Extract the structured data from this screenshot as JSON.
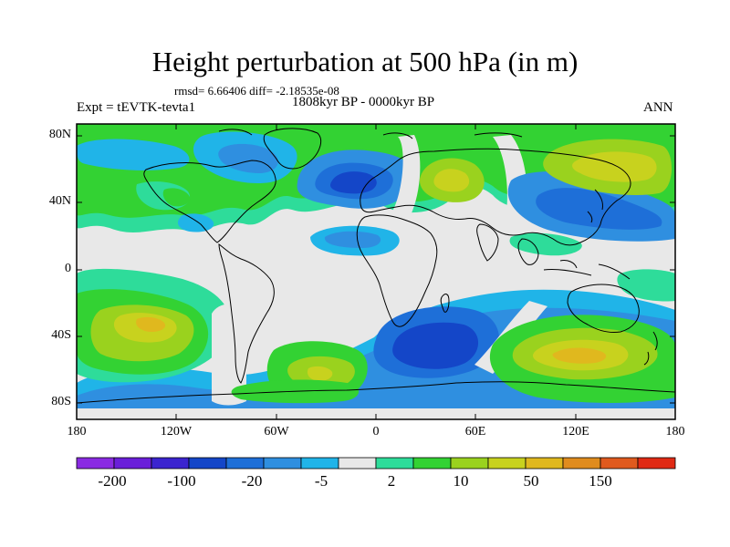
{
  "title": "Height perturbation at 500 hPa (in m)",
  "stats": "rmsd= 6.66406  diff= -2.18535e-08",
  "experiment": "Expt = tEVTK-tevta1",
  "period": "1808kyr BP - 0000kyr BP",
  "season": "ANN",
  "lat_ticks": [
    "80N",
    "40N",
    "0",
    "40S",
    "80S"
  ],
  "lon_ticks": [
    "180",
    "120W",
    "60W",
    "0",
    "60E",
    "120E",
    "180"
  ],
  "colorbar": {
    "colors": [
      "#8a2be2",
      "#6a1fd9",
      "#3b24cf",
      "#1446c8",
      "#1e6fd8",
      "#2f8fe0",
      "#20b4e8",
      "#e8e8e8",
      "#2edc9a",
      "#33d233",
      "#9ad21e",
      "#c8d21e",
      "#e0b81e",
      "#e08c1e",
      "#e05a1e",
      "#e02a14"
    ],
    "labels": [
      "-200",
      "-100",
      "-20",
      "-5",
      "2",
      "10",
      "50",
      "150"
    ]
  },
  "map_regions": [
    {
      "name": "arctic-positive-band",
      "value": 10,
      "color": "#33d233"
    },
    {
      "name": "north-atlantic-low",
      "value": -100,
      "color": "#1446c8"
    },
    {
      "name": "siberian-high",
      "value": 20,
      "color": "#9ad21e"
    },
    {
      "name": "north-pacific-high",
      "value": 50,
      "color": "#c8d21e"
    },
    {
      "name": "south-pacific-high",
      "value": 50,
      "color": "#c8d21e"
    },
    {
      "name": "south-indian-low",
      "value": -100,
      "color": "#1446c8"
    },
    {
      "name": "south-australian-high",
      "value": 50,
      "color": "#c8d21e"
    }
  ]
}
